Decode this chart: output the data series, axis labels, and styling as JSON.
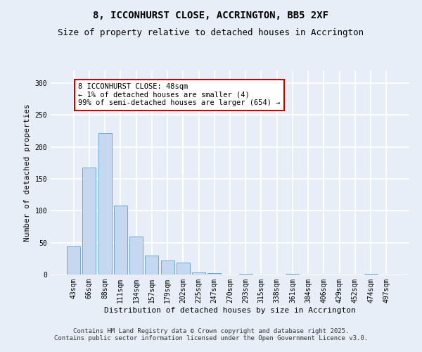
{
  "title_line1": "8, ICCONHURST CLOSE, ACCRINGTON, BB5 2XF",
  "title_line2": "Size of property relative to detached houses in Accrington",
  "xlabel": "Distribution of detached houses by size in Accrington",
  "ylabel": "Number of detached properties",
  "categories": [
    "43sqm",
    "66sqm",
    "88sqm",
    "111sqm",
    "134sqm",
    "157sqm",
    "179sqm",
    "202sqm",
    "225sqm",
    "247sqm",
    "270sqm",
    "293sqm",
    "315sqm",
    "338sqm",
    "361sqm",
    "384sqm",
    "406sqm",
    "429sqm",
    "452sqm",
    "474sqm",
    "497sqm"
  ],
  "values": [
    44,
    168,
    222,
    108,
    60,
    30,
    22,
    19,
    3,
    2,
    0,
    1,
    0,
    0,
    1,
    0,
    0,
    0,
    0,
    1,
    0
  ],
  "bar_color": "#c5d8f0",
  "bar_edge_color": "#6aaad4",
  "annotation_box_color": "#cc0000",
  "annotation_text_line1": "8 ICCONHURST CLOSE: 48sqm",
  "annotation_text_line2": "← 1% of detached houses are smaller (4)",
  "annotation_text_line3": "99% of semi-detached houses are larger (654) →",
  "ylim": [
    0,
    320
  ],
  "yticks": [
    0,
    50,
    100,
    150,
    200,
    250,
    300
  ],
  "footnote_line1": "Contains HM Land Registry data © Crown copyright and database right 2025.",
  "footnote_line2": "Contains public sector information licensed under the Open Government Licence v3.0.",
  "bg_color": "#e8eef7",
  "plot_bg_color": "#e8eef7",
  "grid_color": "#ffffff",
  "title_fontsize": 10,
  "subtitle_fontsize": 9,
  "label_fontsize": 8,
  "tick_fontsize": 7,
  "annotation_fontsize": 7.5,
  "footnote_fontsize": 6.5
}
